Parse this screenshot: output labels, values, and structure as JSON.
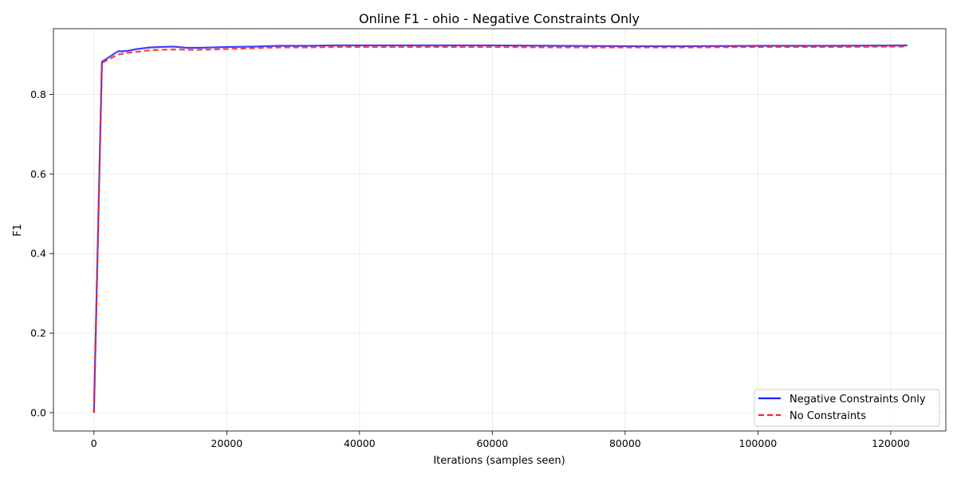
{
  "chart_data": {
    "type": "line",
    "title": "Online F1 - ohio - Negative Constraints Only",
    "xlabel": "Iterations (samples seen)",
    "ylabel": "F1",
    "xlim": [
      -6100,
      128300
    ],
    "ylim": [
      -0.046,
      0.965
    ],
    "xticks": [
      0,
      20000,
      40000,
      60000,
      80000,
      100000,
      120000
    ],
    "xtick_labels": [
      "0",
      "20000",
      "40000",
      "60000",
      "80000",
      "100000",
      "120000"
    ],
    "yticks": [
      0.0,
      0.2,
      0.4,
      0.6,
      0.8
    ],
    "ytick_labels": [
      "0.0",
      "0.2",
      "0.4",
      "0.6",
      "0.8"
    ],
    "grid": true,
    "legend_position": "lower right",
    "series": [
      {
        "name": "Negative Constraints Only",
        "color": "#1f1fff",
        "style": "solid",
        "x": [
          0,
          1200,
          3600,
          5000,
          6500,
          8500,
          10000,
          12000,
          14000,
          16000,
          20000,
          24000,
          28000,
          32000,
          36000,
          40000,
          50000,
          60000,
          70000,
          80000,
          90000,
          100000,
          110000,
          122500
        ],
        "y": [
          0.0,
          0.882,
          0.908,
          0.909,
          0.914,
          0.918,
          0.919,
          0.92,
          0.917,
          0.917,
          0.919,
          0.92,
          0.922,
          0.922,
          0.923,
          0.923,
          0.923,
          0.923,
          0.922,
          0.921,
          0.921,
          0.922,
          0.922,
          0.923
        ]
      },
      {
        "name": "No Constraints",
        "color": "#ff2020",
        "style": "dashed",
        "x": [
          0,
          1200,
          3600,
          5000,
          6500,
          8500,
          10000,
          12000,
          14000,
          16000,
          20000,
          24000,
          28000,
          32000,
          36000,
          40000,
          50000,
          60000,
          70000,
          80000,
          90000,
          100000,
          110000,
          122500
        ],
        "y": [
          0.0,
          0.879,
          0.9,
          0.904,
          0.907,
          0.911,
          0.912,
          0.913,
          0.912,
          0.912,
          0.914,
          0.916,
          0.918,
          0.918,
          0.919,
          0.919,
          0.919,
          0.919,
          0.918,
          0.918,
          0.918,
          0.919,
          0.919,
          0.92
        ]
      }
    ]
  }
}
